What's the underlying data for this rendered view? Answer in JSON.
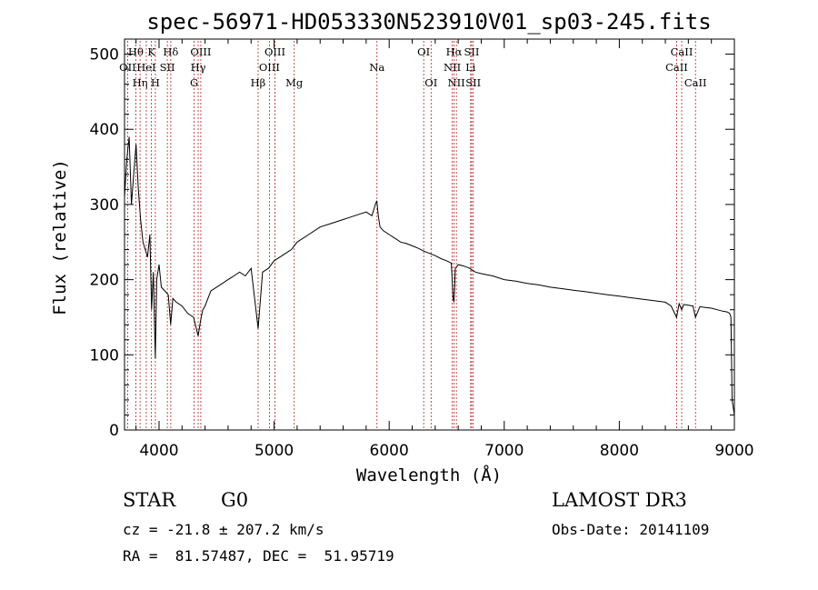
{
  "chart_data": {
    "type": "line",
    "title": "spec-56971-HD053330N523910V01_sp03-245.fits",
    "xlabel": "Wavelength (Å)",
    "ylabel": "Flux (relative)",
    "xlim": [
      3700,
      9000
    ],
    "ylim": [
      0,
      520
    ],
    "x_ticks": [
      4000,
      5000,
      6000,
      7000,
      8000,
      9000
    ],
    "y_ticks": [
      0,
      100,
      200,
      300,
      400,
      500
    ],
    "grid": false,
    "line_color": "#000000",
    "marker_color": "#b22222",
    "spectrum": {
      "x": [
        3700,
        3720,
        3740,
        3760,
        3780,
        3800,
        3820,
        3840,
        3860,
        3880,
        3900,
        3920,
        3935,
        3950,
        3968,
        3980,
        4000,
        4020,
        4050,
        4080,
        4101,
        4120,
        4150,
        4200,
        4250,
        4300,
        4340,
        4360,
        4380,
        4400,
        4450,
        4500,
        4550,
        4600,
        4650,
        4700,
        4750,
        4800,
        4861,
        4900,
        4950,
        5000,
        5050,
        5100,
        5150,
        5200,
        5300,
        5400,
        5500,
        5600,
        5700,
        5800,
        5850,
        5880,
        5893,
        5905,
        5920,
        5950,
        6000,
        6050,
        6100,
        6150,
        6200,
        6250,
        6300,
        6350,
        6400,
        6450,
        6500,
        6540,
        6555,
        6563,
        6575,
        6600,
        6650,
        6700,
        6750,
        6800,
        6900,
        7000,
        7100,
        7200,
        7300,
        7400,
        7500,
        7600,
        7700,
        7800,
        7900,
        8000,
        8100,
        8200,
        8300,
        8400,
        8450,
        8498,
        8520,
        8542,
        8560,
        8600,
        8640,
        8662,
        8700,
        8750,
        8800,
        8850,
        8900,
        8940,
        8960,
        8970,
        8980,
        8990,
        8995,
        9000
      ],
      "y": [
        310,
        360,
        390,
        300,
        340,
        380,
        320,
        280,
        250,
        240,
        230,
        260,
        160,
        210,
        95,
        200,
        220,
        190,
        185,
        180,
        140,
        175,
        170,
        165,
        155,
        150,
        125,
        145,
        160,
        165,
        185,
        190,
        195,
        200,
        205,
        210,
        205,
        215,
        135,
        210,
        215,
        225,
        230,
        235,
        240,
        250,
        260,
        270,
        275,
        280,
        285,
        290,
        285,
        300,
        305,
        285,
        270,
        265,
        260,
        255,
        250,
        248,
        245,
        242,
        238,
        235,
        232,
        228,
        225,
        222,
        175,
        170,
        215,
        220,
        218,
        215,
        210,
        208,
        205,
        200,
        198,
        195,
        193,
        190,
        188,
        186,
        184,
        182,
        180,
        178,
        176,
        174,
        172,
        170,
        165,
        150,
        168,
        160,
        167,
        166,
        165,
        150,
        164,
        163,
        162,
        160,
        158,
        157,
        155,
        150,
        40,
        30,
        25,
        20
      ]
    },
    "lines": [
      {
        "name": "OII",
        "x": 3727,
        "row": 1
      },
      {
        "name": "Hθ",
        "x": 3798,
        "row": 0
      },
      {
        "name": "Hη",
        "x": 3835,
        "row": 2
      },
      {
        "name": "HeI",
        "x": 3889,
        "row": 1
      },
      {
        "name": "K",
        "x": 3934,
        "row": 0
      },
      {
        "name": "H",
        "x": 3968,
        "row": 2
      },
      {
        "name": "SII",
        "x": 4072,
        "row": 1
      },
      {
        "name": "Hδ",
        "x": 4102,
        "row": 0
      },
      {
        "name": "G",
        "x": 4305,
        "row": 2
      },
      {
        "name": "Hγ",
        "x": 4340,
        "row": 1
      },
      {
        "name": "OIII",
        "x": 4363,
        "row": 0
      },
      {
        "name": "Hβ",
        "x": 4861,
        "row": 2
      },
      {
        "name": "OIII",
        "x": 4959,
        "row": 1
      },
      {
        "name": "OIII",
        "x": 5007,
        "row": 0
      },
      {
        "name": "Mg",
        "x": 5175,
        "row": 2
      },
      {
        "name": "Na",
        "x": 5894,
        "row": 1
      },
      {
        "name": "OI",
        "x": 6300,
        "row": 0
      },
      {
        "name": "OI",
        "x": 6364,
        "row": 2
      },
      {
        "name": "NII",
        "x": 6548,
        "row": 1
      },
      {
        "name": "Hα",
        "x": 6563,
        "row": 0
      },
      {
        "name": "NII",
        "x": 6584,
        "row": 2
      },
      {
        "name": "Li",
        "x": 6708,
        "row": 1
      },
      {
        "name": "SII",
        "x": 6717,
        "row": 0
      },
      {
        "name": "SII",
        "x": 6731,
        "row": 2
      },
      {
        "name": "CaII",
        "x": 8498,
        "row": 1
      },
      {
        "name": "CaII",
        "x": 8542,
        "row": 0
      },
      {
        "name": "CaII",
        "x": 8662,
        "row": 2
      }
    ]
  },
  "info": {
    "object_class": "STAR",
    "subclass": "G0",
    "survey": "LAMOST DR3",
    "redshift": "cz = -21.8 ± 207.2 km/s",
    "obs_date": "Obs-Date: 20141109",
    "coords": "RA =  81.57487, DEC =  51.95719"
  }
}
